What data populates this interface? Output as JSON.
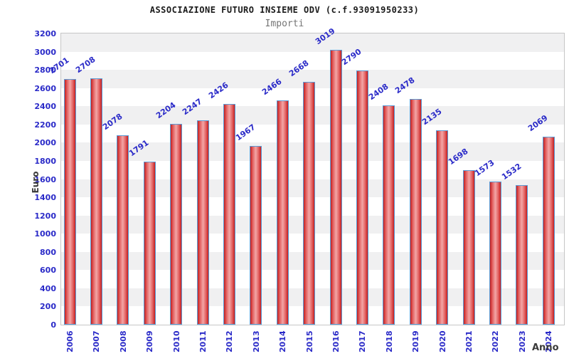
{
  "header": {
    "title": "ASSOCIAZIONE FUTURO INSIEME ODV (c.f.93091950233)",
    "subtitle": "Importi"
  },
  "chart_data": {
    "type": "bar",
    "title": "ASSOCIAZIONE FUTURO INSIEME ODV (c.f.93091950233)",
    "subtitle": "Importi",
    "xlabel": "Anno",
    "ylabel": "Euro",
    "categories": [
      "2006",
      "2007",
      "2008",
      "2009",
      "2010",
      "2011",
      "2012",
      "2013",
      "2014",
      "2015",
      "2016",
      "2017",
      "2018",
      "2019",
      "2020",
      "2021",
      "2022",
      "2023",
      "2024"
    ],
    "values": [
      2701,
      2708,
      2078,
      1791,
      2204,
      2247,
      2426,
      1967,
      2466,
      2668,
      3019,
      2790,
      2408,
      2478,
      2135,
      1698,
      1573,
      1532,
      2069
    ],
    "ylim": [
      0,
      3200
    ],
    "y_tick_step": 200,
    "grid": "alternating horizontal bands",
    "legend": "none",
    "bar_value_labels": true,
    "colors": {
      "label_blue": "#2a2ac8",
      "bar_edge_blue": "#5b9bd5",
      "bar_dark_red": "#c41f1f",
      "bar_light_red": "#f3a6a6",
      "band_gray": "#f0f0f1",
      "band_white": "#ffffff",
      "plot_border": "#c6c6c6",
      "axis_title_dark": "#3a3a3a",
      "title_black": "#1a1a1a",
      "subtitle_gray": "#757575"
    }
  }
}
